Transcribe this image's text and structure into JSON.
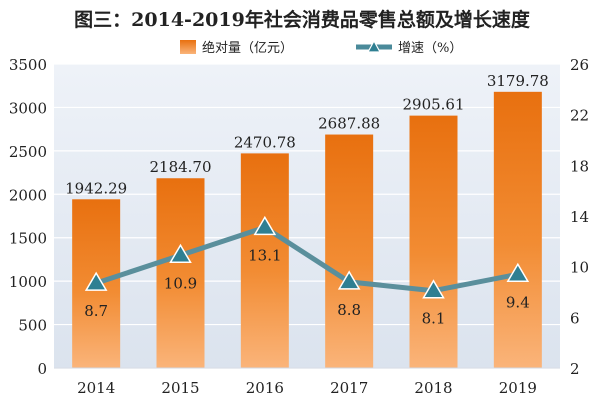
{
  "chart_data": {
    "type": "bar",
    "title": "图三：2014-2019年社会消费品零售总额及增长速度",
    "categories": [
      "2014",
      "2015",
      "2016",
      "2017",
      "2018",
      "2019"
    ],
    "series": [
      {
        "name": "绝对量（亿元）",
        "type": "bar",
        "axis": "left",
        "values": [
          1942.29,
          2184.7,
          2470.78,
          2687.88,
          2905.61,
          3179.78
        ],
        "labels": [
          "1942.29",
          "2184.70",
          "2470.78",
          "2687.88",
          "2905.61",
          "3179.78"
        ],
        "color": "#f07f22"
      },
      {
        "name": "增速（%）",
        "type": "line",
        "axis": "right",
        "values": [
          8.7,
          10.9,
          13.1,
          8.8,
          8.1,
          9.4
        ],
        "labels": [
          "8.7",
          "10.9",
          "13.1",
          "8.8",
          "8.1",
          "9.4"
        ],
        "color": "#4a8a9a"
      }
    ],
    "y_left": {
      "range": [
        0,
        3500
      ],
      "ticks": [
        "0",
        "500",
        "1000",
        "1500",
        "2000",
        "2500",
        "3000",
        "3500"
      ]
    },
    "y_right": {
      "range": [
        2,
        26
      ],
      "ticks": [
        "2",
        "6",
        "10",
        "14",
        "18",
        "22",
        "26"
      ]
    },
    "grid": true,
    "legend": "top-center"
  }
}
